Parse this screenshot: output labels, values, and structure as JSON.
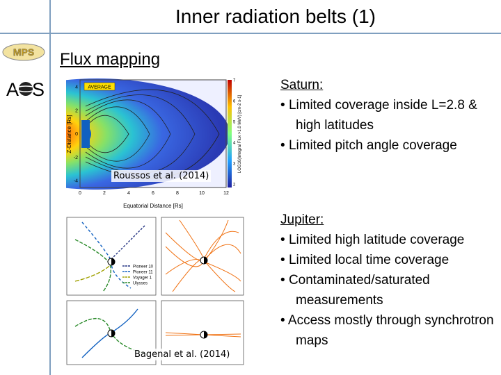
{
  "header": {
    "title": "Inner radiation belts (1)"
  },
  "logos": [
    "MPS",
    "A",
    "S"
  ],
  "section": "Flux mapping",
  "figures": [
    {
      "caption": "Roussos et al. (2014)",
      "label": "AVERAGE",
      "x_label": "Equatorial Distance [Rs]",
      "y_label": "Z-Distance [Rs]",
      "colorbar_label": "LOG10(Integral Flux >1.0 MeV) [cm-2 s-1]",
      "x_ticks": [
        0,
        2,
        4,
        6,
        8,
        10,
        12
      ],
      "y_ticks": [
        4,
        2,
        0,
        -2,
        -4
      ],
      "colorbar_ticks": [
        2,
        3,
        4,
        5,
        6,
        7
      ]
    },
    {
      "caption": "Bagenal et al. (2014)",
      "legend": [
        "Pioneer 10",
        "Pioneer 11",
        "Voyager 1",
        "Ulysses"
      ]
    }
  ],
  "notes": [
    {
      "heading": "Saturn:",
      "bullets": [
        "Limited coverage inside L=2.8 & high latitudes",
        "Limited pitch angle coverage"
      ]
    },
    {
      "heading": "Jupiter:",
      "bullets": [
        "Limited high latitude coverage",
        "Limited local time coverage",
        "Contaminated/saturated measurements",
        "Access mostly through synchrotron maps"
      ]
    }
  ]
}
